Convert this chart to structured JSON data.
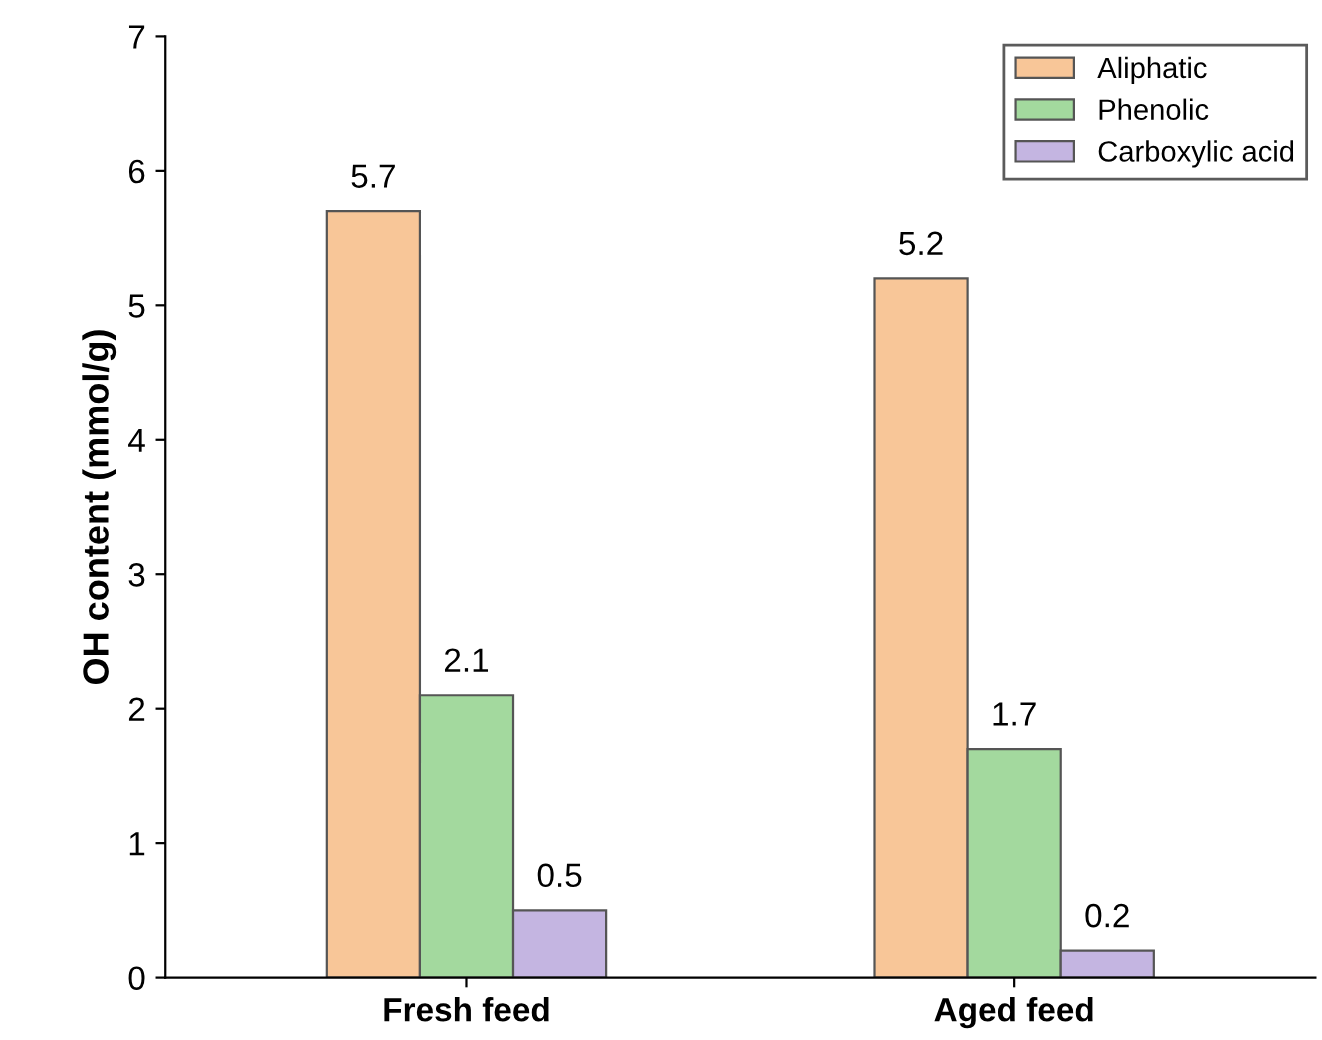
{
  "chart_data": {
    "type": "bar",
    "ylabel": "OH content (mmol/g)",
    "categories": [
      "Fresh feed",
      "Aged feed"
    ],
    "series": [
      {
        "name": "Aliphatic",
        "color": "#f8c698",
        "values": [
          5.7,
          5.2
        ]
      },
      {
        "name": "Phenolic",
        "color": "#a3d99e",
        "values": [
          2.1,
          1.7
        ]
      },
      {
        "name": "Carboxylic acid",
        "color": "#c4b5e1",
        "values": [
          0.5,
          0.2
        ]
      }
    ],
    "ylim": [
      0,
      7
    ],
    "yticks": [
      0,
      1,
      2,
      3,
      4,
      5,
      6,
      7
    ],
    "data_labels": true,
    "legend": "top right",
    "grid": false
  }
}
